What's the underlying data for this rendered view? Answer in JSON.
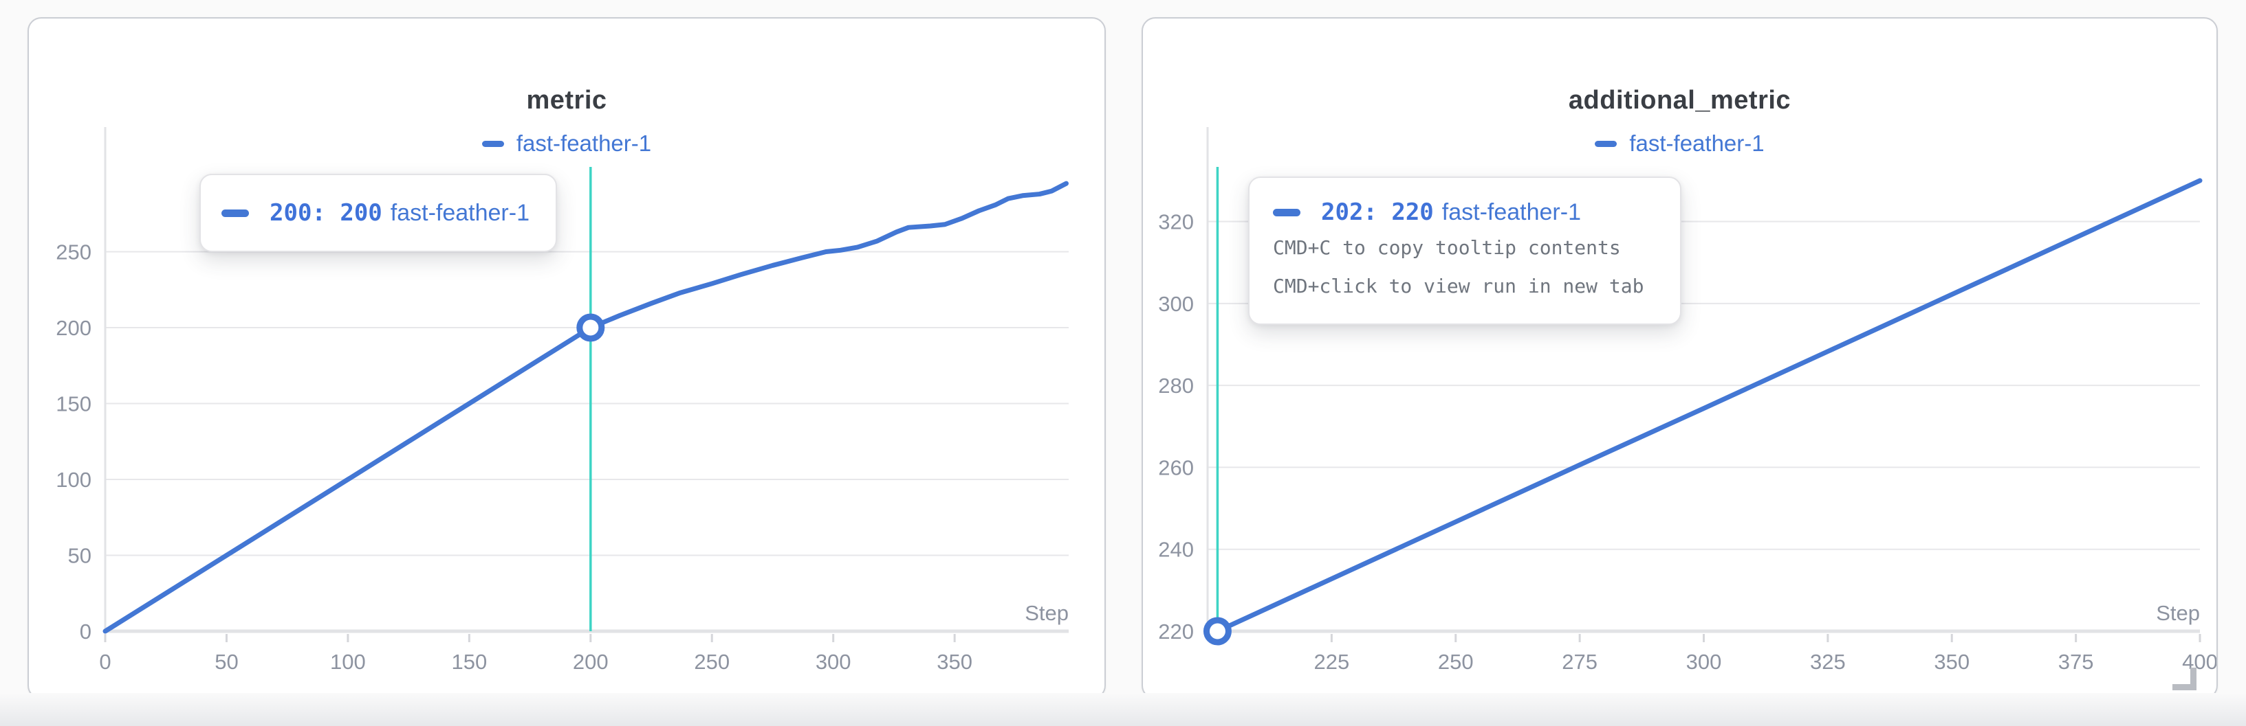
{
  "page": {
    "background": "#fafafa"
  },
  "chart_data": [
    {
      "type": "line",
      "title": "metric",
      "xlabel": "Step",
      "x_ticks": [
        0,
        50,
        100,
        150,
        200,
        250,
        300,
        350
      ],
      "y_ticks": [
        0,
        50,
        100,
        150,
        200,
        250
      ],
      "xlim": [
        0,
        397
      ],
      "ylim": [
        0,
        305
      ],
      "grid": "horizontal",
      "legend_position": "top-center",
      "series": [
        {
          "name": "fast-feather-1",
          "color": "#4377d4",
          "points": [
            [
              0,
              0
            ],
            [
              25,
              25
            ],
            [
              50,
              50
            ],
            [
              75,
              75
            ],
            [
              100,
              100
            ],
            [
              125,
              125
            ],
            [
              150,
              150
            ],
            [
              175,
              175
            ],
            [
              200,
              200
            ],
            [
              212,
              208
            ],
            [
              225,
              216
            ],
            [
              237,
              223
            ],
            [
              250,
              229
            ],
            [
              262,
              235
            ],
            [
              275,
              241
            ],
            [
              287,
              246
            ],
            [
              297,
              250
            ],
            [
              303,
              251
            ],
            [
              310,
              253
            ],
            [
              318,
              257
            ],
            [
              326,
              263
            ],
            [
              331,
              266
            ],
            [
              340,
              267
            ],
            [
              346,
              268
            ],
            [
              353,
              272
            ],
            [
              360,
              277
            ],
            [
              367,
              281
            ],
            [
              372,
              285
            ],
            [
              378,
              287
            ],
            [
              385,
              288
            ],
            [
              390,
              290
            ],
            [
              396,
              295
            ]
          ]
        }
      ],
      "cursor": {
        "x": 200,
        "y": 200,
        "crosshair_color": "#3ed4c5"
      },
      "tooltip": {
        "value_label": "200: 200",
        "run_label": "fast-feather-1",
        "hints": []
      }
    },
    {
      "type": "line",
      "title": "additional_metric",
      "xlabel": "Step",
      "x_ticks": [
        225,
        250,
        275,
        300,
        325,
        350,
        375,
        400
      ],
      "y_ticks": [
        220,
        240,
        260,
        280,
        300,
        320
      ],
      "xlim": [
        200,
        400
      ],
      "ylim": [
        220,
        333
      ],
      "grid": "horizontal",
      "legend_position": "top-center",
      "series": [
        {
          "name": "fast-feather-1",
          "color": "#4377d4",
          "points": [
            [
              202,
              220
            ],
            [
              225,
              232.8
            ],
            [
              250,
              246.7
            ],
            [
              275,
              260.6
            ],
            [
              300,
              274.4
            ],
            [
              325,
              288.3
            ],
            [
              350,
              302.2
            ],
            [
              375,
              316.1
            ],
            [
              400,
              330
            ]
          ]
        }
      ],
      "cursor": {
        "x": 202,
        "y": 220,
        "crosshair_color": "#3ed4c5"
      },
      "tooltip": {
        "value_label": "202: 220",
        "run_label": "fast-feather-1",
        "hints": [
          "CMD+C to copy tooltip contents",
          "CMD+click to view run in new tab"
        ]
      }
    }
  ],
  "colors": {
    "accent_blue": "#4377d4",
    "crosshair_teal": "#3ed4c5",
    "axis_text": "#8d93a0",
    "grid_line": "#e7e7ea",
    "axis_line": "#e2e3e6",
    "hint_text": "#6f757e",
    "title_text": "#3a3e44"
  },
  "icons": {
    "resize_handle": "corner-bracket"
  }
}
